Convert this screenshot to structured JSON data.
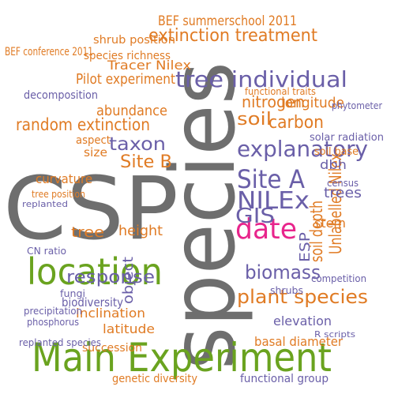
{
  "words": [
    {
      "text": "CSP",
      "color": "#6e6e6e"
    },
    {
      "text": "species",
      "color": "#6e6e6e"
    },
    {
      "text": "Main Experiment",
      "color": "#6aa31f"
    },
    {
      "text": "location",
      "color": "#6aa31f"
    },
    {
      "text": "date",
      "color": "#e8258c"
    },
    {
      "text": "tree individual",
      "color": "#6a5fa8"
    },
    {
      "text": "extinction treatment",
      "color": "#e07b24"
    },
    {
      "text": "BEF summerschool 2011",
      "color": "#e07b24"
    },
    {
      "text": "explanatory",
      "color": "#6a5fa8"
    },
    {
      "text": "Site A",
      "color": "#6a5fa8"
    },
    {
      "text": "NILEx",
      "color": "#6a5fa8"
    },
    {
      "text": "GIS",
      "color": "#6a5fa8"
    },
    {
      "text": "biomass",
      "color": "#6a5fa8"
    },
    {
      "text": "plant species",
      "color": "#e07b24"
    },
    {
      "text": "response",
      "color": "#6a5fa8"
    },
    {
      "text": "Unlabelled Nilex",
      "color": "#e07b24"
    },
    {
      "text": "soil depth",
      "color": "#e07b24"
    },
    {
      "text": "ESP",
      "color": "#6a5fa8"
    },
    {
      "text": "random extinction",
      "color": "#e07b24"
    },
    {
      "text": "taxon",
      "color": "#6a5fa8"
    },
    {
      "text": "Site B",
      "color": "#e07b24"
    },
    {
      "text": "abundance",
      "color": "#e07b24"
    },
    {
      "text": "Pilot experiment",
      "color": "#e07b24"
    },
    {
      "text": "Tracer Nilex",
      "color": "#e07b24"
    },
    {
      "text": "shrub position",
      "color": "#e07b24"
    },
    {
      "text": "species richness",
      "color": "#e07b24"
    },
    {
      "text": "BEF conference 2011",
      "color": "#e07b24"
    },
    {
      "text": "soil",
      "color": "#e07b24"
    },
    {
      "text": "carbon",
      "color": "#e07b24"
    },
    {
      "text": "nitrogen",
      "color": "#e07b24"
    },
    {
      "text": "longitude",
      "color": "#e07b24"
    },
    {
      "text": "dbh",
      "color": "#6a5fa8"
    },
    {
      "text": "trees",
      "color": "#6a5fa8"
    },
    {
      "text": "stem",
      "color": "#e07b24"
    },
    {
      "text": "height",
      "color": "#e07b24"
    },
    {
      "text": "tree",
      "color": "#e07b24"
    },
    {
      "text": "curvature",
      "color": "#e07b24"
    },
    {
      "text": "aspect",
      "color": "#e07b24"
    },
    {
      "text": "size",
      "color": "#e07b24"
    },
    {
      "text": "elevation",
      "color": "#6a5fa8"
    },
    {
      "text": "basal diameter",
      "color": "#e07b24"
    },
    {
      "text": "inclination",
      "color": "#e07b24"
    },
    {
      "text": "latitude",
      "color": "#e07b24"
    },
    {
      "text": "biodiversity",
      "color": "#6a5fa8"
    },
    {
      "text": "succession",
      "color": "#e07b24"
    },
    {
      "text": "object",
      "color": "#6a5fa8"
    },
    {
      "text": "genetic diversity",
      "color": "#e07b24"
    },
    {
      "text": "functional group",
      "color": "#6a5fa8"
    },
    {
      "text": "decomposition",
      "color": "#6a5fa8"
    },
    {
      "text": "solar radiation",
      "color": "#6a5fa8"
    },
    {
      "text": "functional traits",
      "color": "#e07b24"
    },
    {
      "text": "phytometer",
      "color": "#6a5fa8"
    },
    {
      "text": "competition",
      "color": "#6a5fa8"
    },
    {
      "text": "phosphorus",
      "color": "#6a5fa8"
    },
    {
      "text": "precipitation",
      "color": "#6a5fa8"
    },
    {
      "text": "replanted species",
      "color": "#6a5fa8"
    },
    {
      "text": "CN ratio",
      "color": "#6a5fa8"
    },
    {
      "text": "fungi",
      "color": "#6a5fa8"
    },
    {
      "text": "soil base",
      "color": "#e07b24"
    },
    {
      "text": "census",
      "color": "#6a5fa8"
    },
    {
      "text": "shrubs",
      "color": "#6a5fa8"
    },
    {
      "text": "R scripts",
      "color": "#6a5fa8"
    },
    {
      "text": "tree position",
      "color": "#e07b24"
    },
    {
      "text": "replanted",
      "color": "#6a5fa8"
    }
  ]
}
